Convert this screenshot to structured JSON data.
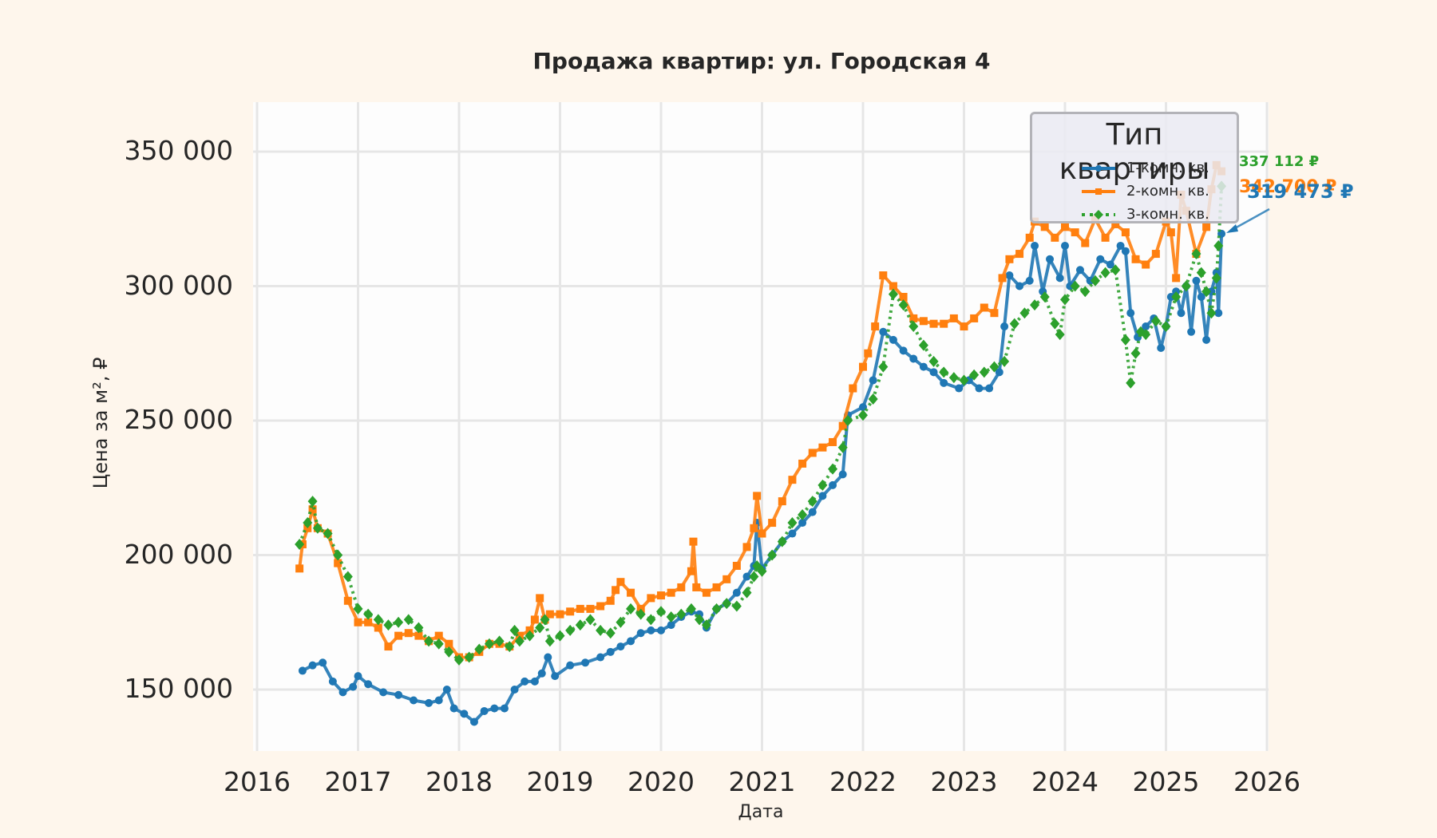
{
  "title": "Продажа квартир: ул. Городская 4",
  "xlabel": "Дата",
  "ylabel": "Цена за м², ₽",
  "legend": {
    "title": "Тип квартиры",
    "items": [
      {
        "label": "1-комн. кв.",
        "color": "#1f77b4",
        "marker": "circle"
      },
      {
        "label": "2-комн. кв.",
        "color": "#ff7f0e",
        "marker": "square"
      },
      {
        "label": "3-комн. кв.",
        "color": "#2ca02c",
        "marker": "diamond"
      }
    ]
  },
  "annotations": [
    {
      "text": "337 112 ₽",
      "color": "#2ca02c"
    },
    {
      "text": "342 700 ₽",
      "color": "#ff7f0e"
    },
    {
      "text": "319 473 ₽",
      "color": "#1f77b4"
    }
  ],
  "yticks": [
    "150 000",
    "200 000",
    "250 000",
    "300 000",
    "350 000"
  ],
  "xticks": [
    "2016",
    "2017",
    "2018",
    "2019",
    "2020",
    "2021",
    "2022",
    "2023",
    "2024",
    "2025",
    "2026"
  ],
  "chart_data": {
    "type": "line",
    "title": "Продажа квартир: ул. Городская 4",
    "xlabel": "Дата",
    "ylabel": "Цена за м², ₽",
    "xlim": [
      2016.0,
      2026.0
    ],
    "ylim": [
      127000,
      368000
    ],
    "grid": true,
    "legend_title": "Тип квартиры",
    "legend_position": "upper right",
    "series": [
      {
        "name": "1-комн. кв.",
        "color": "#1f77b4",
        "x": [
          2016.45,
          2016.55,
          2016.65,
          2016.75,
          2016.85,
          2016.95,
          2017.0,
          2017.1,
          2017.25,
          2017.4,
          2017.55,
          2017.7,
          2017.8,
          2017.88,
          2017.95,
          2018.05,
          2018.15,
          2018.25,
          2018.35,
          2018.45,
          2018.55,
          2018.65,
          2018.75,
          2018.82,
          2018.88,
          2018.95,
          2019.1,
          2019.25,
          2019.4,
          2019.5,
          2019.6,
          2019.7,
          2019.8,
          2019.9,
          2020.0,
          2020.1,
          2020.2,
          2020.3,
          2020.38,
          2020.45,
          2020.55,
          2020.65,
          2020.75,
          2020.85,
          2020.92,
          2020.95,
          2021.0,
          2021.1,
          2021.2,
          2021.3,
          2021.4,
          2021.5,
          2021.6,
          2021.7,
          2021.8,
          2021.85,
          2022.0,
          2022.1,
          2022.2,
          2022.3,
          2022.4,
          2022.5,
          2022.6,
          2022.7,
          2022.8,
          2022.95,
          2023.05,
          2023.15,
          2023.25,
          2023.35,
          2023.4,
          2023.45,
          2023.55,
          2023.65,
          2023.7,
          2023.78,
          2023.85,
          2023.95,
          2024.0,
          2024.05,
          2024.15,
          2024.25,
          2024.35,
          2024.45,
          2024.55,
          2024.6,
          2024.65,
          2024.72,
          2024.8,
          2024.88,
          2024.95,
          2025.0,
          2025.05,
          2025.1,
          2025.15,
          2025.2,
          2025.25,
          2025.3,
          2025.35,
          2025.4,
          2025.45,
          2025.5,
          2025.52,
          2025.55
        ],
        "values": [
          157000,
          159000,
          160000,
          153000,
          149000,
          151000,
          155000,
          152000,
          149000,
          148000,
          146000,
          145000,
          146000,
          150000,
          143000,
          141000,
          138000,
          142000,
          143000,
          143000,
          150000,
          153000,
          153000,
          156000,
          162000,
          155000,
          159000,
          160000,
          162000,
          164000,
          166000,
          168000,
          171000,
          172000,
          172000,
          174000,
          177000,
          179000,
          178000,
          173000,
          180000,
          182000,
          186000,
          192000,
          196000,
          212000,
          195000,
          200000,
          205000,
          208000,
          212000,
          216000,
          222000,
          226000,
          230000,
          252000,
          255000,
          265000,
          283000,
          280000,
          276000,
          273000,
          270000,
          268000,
          264000,
          262000,
          265000,
          262000,
          262000,
          268000,
          285000,
          304000,
          300000,
          302000,
          315000,
          298000,
          310000,
          303000,
          315000,
          300000,
          306000,
          302000,
          310000,
          308000,
          315000,
          313000,
          290000,
          281000,
          285000,
          288000,
          277000,
          285000,
          296000,
          298000,
          290000,
          300000,
          283000,
          302000,
          296000,
          280000,
          298000,
          305000,
          290000,
          319473
        ]
      },
      {
        "name": "2-комн. кв.",
        "color": "#ff7f0e",
        "x": [
          2016.42,
          2016.45,
          2016.5,
          2016.55,
          2016.6,
          2016.7,
          2016.8,
          2016.9,
          2017.0,
          2017.1,
          2017.2,
          2017.3,
          2017.4,
          2017.5,
          2017.6,
          2017.7,
          2017.8,
          2017.9,
          2018.0,
          2018.1,
          2018.2,
          2018.3,
          2018.4,
          2018.5,
          2018.6,
          2018.7,
          2018.75,
          2018.8,
          2018.85,
          2018.9,
          2019.0,
          2019.1,
          2019.2,
          2019.3,
          2019.4,
          2019.5,
          2019.55,
          2019.6,
          2019.7,
          2019.8,
          2019.9,
          2020.0,
          2020.1,
          2020.2,
          2020.3,
          2020.32,
          2020.35,
          2020.45,
          2020.55,
          2020.65,
          2020.75,
          2020.85,
          2020.92,
          2020.95,
          2021.0,
          2021.1,
          2021.2,
          2021.3,
          2021.4,
          2021.5,
          2021.6,
          2021.7,
          2021.8,
          2021.9,
          2022.0,
          2022.05,
          2022.12,
          2022.2,
          2022.3,
          2022.4,
          2022.5,
          2022.6,
          2022.7,
          2022.8,
          2022.9,
          2023.0,
          2023.1,
          2023.2,
          2023.3,
          2023.38,
          2023.45,
          2023.55,
          2023.65,
          2023.7,
          2023.8,
          2023.9,
          2024.0,
          2024.1,
          2024.2,
          2024.3,
          2024.4,
          2024.5,
          2024.6,
          2024.7,
          2024.8,
          2024.9,
          2025.0,
          2025.05,
          2025.1,
          2025.15,
          2025.2,
          2025.3,
          2025.4,
          2025.45,
          2025.5,
          2025.55
        ],
        "values": [
          195000,
          204000,
          210000,
          217000,
          210000,
          208000,
          197000,
          183000,
          175000,
          175000,
          173000,
          166000,
          170000,
          171000,
          170000,
          168000,
          170000,
          167000,
          162000,
          162000,
          164000,
          167000,
          167000,
          166000,
          170000,
          172000,
          176000,
          184000,
          176000,
          178000,
          178000,
          179000,
          180000,
          180000,
          181000,
          183000,
          187000,
          190000,
          186000,
          180000,
          184000,
          185000,
          186000,
          188000,
          194000,
          205000,
          188000,
          186000,
          188000,
          191000,
          196000,
          203000,
          210000,
          222000,
          208000,
          212000,
          220000,
          228000,
          234000,
          238000,
          240000,
          242000,
          248000,
          262000,
          270000,
          275000,
          285000,
          304000,
          300000,
          296000,
          288000,
          287000,
          286000,
          286000,
          288000,
          285000,
          288000,
          292000,
          290000,
          303000,
          310000,
          312000,
          318000,
          324000,
          322000,
          318000,
          322000,
          320000,
          316000,
          325000,
          318000,
          323000,
          320000,
          310000,
          308000,
          312000,
          324000,
          320000,
          303000,
          334000,
          328000,
          312000,
          322000,
          336000,
          345000,
          342700
        ]
      },
      {
        "name": "3-комн. кв.",
        "color": "#2ca02c",
        "x": [
          2016.42,
          2016.5,
          2016.55,
          2016.6,
          2016.7,
          2016.8,
          2016.9,
          2017.0,
          2017.1,
          2017.2,
          2017.3,
          2017.4,
          2017.5,
          2017.6,
          2017.7,
          2017.8,
          2017.9,
          2018.0,
          2018.1,
          2018.2,
          2018.3,
          2018.4,
          2018.5,
          2018.55,
          2018.6,
          2018.7,
          2018.8,
          2018.85,
          2018.9,
          2019.0,
          2019.1,
          2019.2,
          2019.3,
          2019.4,
          2019.5,
          2019.6,
          2019.7,
          2019.8,
          2019.9,
          2020.0,
          2020.1,
          2020.2,
          2020.3,
          2020.38,
          2020.45,
          2020.55,
          2020.65,
          2020.75,
          2020.85,
          2020.92,
          2020.95,
          2021.0,
          2021.1,
          2021.2,
          2021.3,
          2021.4,
          2021.5,
          2021.6,
          2021.7,
          2021.8,
          2021.85,
          2022.0,
          2022.1,
          2022.2,
          2022.3,
          2022.4,
          2022.5,
          2022.6,
          2022.7,
          2022.8,
          2022.9,
          2023.0,
          2023.1,
          2023.2,
          2023.3,
          2023.4,
          2023.5,
          2023.6,
          2023.7,
          2023.8,
          2023.9,
          2023.95,
          2024.0,
          2024.1,
          2024.2,
          2024.3,
          2024.4,
          2024.5,
          2024.6,
          2024.65,
          2024.7,
          2024.75,
          2024.8,
          2024.9,
          2025.0,
          2025.1,
          2025.2,
          2025.3,
          2025.35,
          2025.4,
          2025.45,
          2025.5,
          2025.52,
          2025.55
        ],
        "values": [
          204000,
          212000,
          220000,
          210000,
          208000,
          200000,
          192000,
          180000,
          178000,
          176000,
          174000,
          175000,
          176000,
          173000,
          168000,
          167000,
          164000,
          161000,
          162000,
          165000,
          167000,
          168000,
          166000,
          172000,
          168000,
          170000,
          173000,
          176000,
          168000,
          170000,
          172000,
          174000,
          176000,
          172000,
          171000,
          175000,
          180000,
          178000,
          176000,
          179000,
          177000,
          178000,
          180000,
          176000,
          174000,
          180000,
          182000,
          181000,
          186000,
          192000,
          196000,
          194000,
          200000,
          205000,
          212000,
          215000,
          220000,
          226000,
          232000,
          240000,
          250000,
          252000,
          258000,
          270000,
          297000,
          293000,
          285000,
          278000,
          272000,
          268000,
          266000,
          265000,
          267000,
          268000,
          270000,
          272000,
          286000,
          290000,
          293000,
          296000,
          286000,
          282000,
          295000,
          300000,
          298000,
          302000,
          305000,
          306000,
          280000,
          264000,
          275000,
          283000,
          282000,
          287000,
          285000,
          296000,
          300000,
          312000,
          305000,
          298000,
          290000,
          303000,
          315000,
          337112
        ]
      }
    ],
    "annotations": [
      {
        "text": "337 112 ₽",
        "series": "3-комн. кв.",
        "value": 337112
      },
      {
        "text": "342 700 ₽",
        "series": "2-комн. кв.",
        "value": 342700
      },
      {
        "text": "319 473 ₽",
        "series": "1-комн. кв.",
        "value": 319473
      }
    ]
  }
}
